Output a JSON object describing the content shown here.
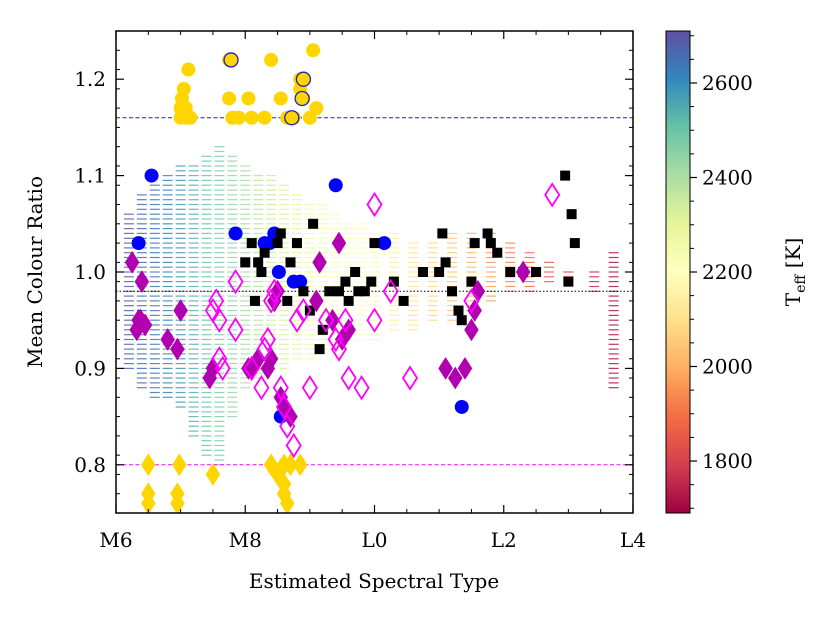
{
  "chart_data": {
    "type": "scatter",
    "title": "",
    "xlabel": "Estimated Spectral Type",
    "ylabel": "Mean Colour Ratio",
    "xlim": [
      0,
      8
    ],
    "ylim": [
      0.75,
      1.25
    ],
    "x_ticks": [
      {
        "value": 0,
        "label": "M6"
      },
      {
        "value": 2,
        "label": "M8"
      },
      {
        "value": 4,
        "label": "L0"
      },
      {
        "value": 6,
        "label": "L2"
      },
      {
        "value": 8,
        "label": "L4"
      }
    ],
    "y_ticks": [
      {
        "value": 0.8,
        "label": "0.8"
      },
      {
        "value": 0.9,
        "label": "0.9"
      },
      {
        "value": 1.0,
        "label": "1.0"
      },
      {
        "value": 1.1,
        "label": "1.1"
      },
      {
        "value": 1.2,
        "label": "1.2"
      }
    ],
    "grid": false,
    "reference_lines": [
      {
        "y": 1.16,
        "color": "#1f1fbf",
        "style": "dashed"
      },
      {
        "y": 0.98,
        "color": "#000000",
        "style": "dotted"
      },
      {
        "y": 0.8,
        "color": "#ff00ff",
        "style": "dashed"
      }
    ],
    "colorbar": {
      "label_main": "T",
      "label_sub": "eff",
      "label_unit": " [K]",
      "range": [
        1690,
        2710
      ],
      "ticks": [
        {
          "value": 1800,
          "label": "1800"
        },
        {
          "value": 2000,
          "label": "2000"
        },
        {
          "value": 2200,
          "label": "2200"
        },
        {
          "value": 2400,
          "label": "2400"
        },
        {
          "value": 2600,
          "label": "2600"
        }
      ],
      "colormap": "Spectral",
      "colors": [
        "#9e0142",
        "#d53e4f",
        "#f46d43",
        "#fdae61",
        "#fee08b",
        "#ffffbf",
        "#e6f598",
        "#abdda4",
        "#66c2a5",
        "#3288bd",
        "#5e4fa2"
      ]
    },
    "model_grid": {
      "columns": [
        {
          "x": 0.2,
          "y0": 0.9,
          "y1": 1.06,
          "teff": 2680
        },
        {
          "x": 0.4,
          "y0": 0.88,
          "y1": 1.08,
          "teff": 2660
        },
        {
          "x": 0.6,
          "y0": 0.87,
          "y1": 1.09,
          "teff": 2640
        },
        {
          "x": 0.8,
          "y0": 0.87,
          "y1": 1.1,
          "teff": 2610
        },
        {
          "x": 1.0,
          "y0": 0.86,
          "y1": 1.11,
          "teff": 2580
        },
        {
          "x": 1.2,
          "y0": 0.83,
          "y1": 1.11,
          "teff": 2540
        },
        {
          "x": 1.4,
          "y0": 0.81,
          "y1": 1.12,
          "teff": 2500
        },
        {
          "x": 1.6,
          "y0": 0.8,
          "y1": 1.13,
          "teff": 2470
        },
        {
          "x": 1.8,
          "y0": 0.85,
          "y1": 1.12,
          "teff": 2440
        },
        {
          "x": 2.0,
          "y0": 0.88,
          "y1": 1.11,
          "teff": 2410
        },
        {
          "x": 2.2,
          "y0": 0.89,
          "y1": 1.1,
          "teff": 2380
        },
        {
          "x": 2.4,
          "y0": 0.9,
          "y1": 1.1,
          "teff": 2350
        },
        {
          "x": 2.6,
          "y0": 0.9,
          "y1": 1.09,
          "teff": 2320
        },
        {
          "x": 2.8,
          "y0": 0.91,
          "y1": 1.08,
          "teff": 2300
        },
        {
          "x": 3.0,
          "y0": 0.91,
          "y1": 1.07,
          "teff": 2270
        },
        {
          "x": 3.2,
          "y0": 0.92,
          "y1": 1.07,
          "teff": 2250
        },
        {
          "x": 3.4,
          "y0": 0.92,
          "y1": 1.06,
          "teff": 2230
        },
        {
          "x": 3.6,
          "y0": 0.93,
          "y1": 1.05,
          "teff": 2210
        },
        {
          "x": 3.8,
          "y0": 0.93,
          "y1": 1.05,
          "teff": 2190
        },
        {
          "x": 4.0,
          "y0": 0.93,
          "y1": 1.04,
          "teff": 2170
        },
        {
          "x": 4.3,
          "y0": 0.94,
          "y1": 1.04,
          "teff": 2140
        },
        {
          "x": 4.6,
          "y0": 0.94,
          "y1": 1.03,
          "teff": 2110
        },
        {
          "x": 4.9,
          "y0": 0.95,
          "y1": 1.03,
          "teff": 2080
        },
        {
          "x": 5.2,
          "y0": 0.95,
          "y1": 1.04,
          "teff": 2050
        },
        {
          "x": 5.5,
          "y0": 0.96,
          "y1": 1.04,
          "teff": 2010
        },
        {
          "x": 5.8,
          "y0": 0.97,
          "y1": 1.04,
          "teff": 1970
        },
        {
          "x": 6.1,
          "y0": 0.98,
          "y1": 1.03,
          "teff": 1930
        },
        {
          "x": 6.4,
          "y0": 0.98,
          "y1": 1.02,
          "teff": 1890
        },
        {
          "x": 6.7,
          "y0": 0.99,
          "y1": 1.01,
          "teff": 1850
        },
        {
          "x": 7.0,
          "y0": 0.99,
          "y1": 1.0,
          "teff": 1800
        },
        {
          "x": 7.4,
          "y0": 0.98,
          "y1": 1.0,
          "teff": 1760
        },
        {
          "x": 7.7,
          "y0": 0.88,
          "y1": 1.02,
          "teff": 1720
        }
      ],
      "row_spacing": 0.005
    },
    "series": [
      {
        "marker": "circle",
        "color": "#0000ff",
        "points": [
          [
            0.55,
            1.1
          ],
          [
            0.35,
            1.03
          ],
          [
            1.85,
            1.04
          ],
          [
            2.3,
            1.03
          ],
          [
            2.38,
            1.03
          ],
          [
            2.45,
            1.04
          ],
          [
            2.52,
            1.0
          ],
          [
            2.55,
            0.85
          ],
          [
            2.75,
            0.99
          ],
          [
            2.85,
            0.99
          ],
          [
            3.4,
            1.09
          ],
          [
            4.15,
            1.03
          ],
          [
            5.35,
            0.86
          ]
        ]
      },
      {
        "marker": "square",
        "color": "#000000",
        "points": [
          [
            2.0,
            1.01
          ],
          [
            2.1,
            1.03
          ],
          [
            2.15,
            0.97
          ],
          [
            2.2,
            1.01
          ],
          [
            2.25,
            1.0
          ],
          [
            2.3,
            1.02
          ],
          [
            2.5,
            1.03
          ],
          [
            2.55,
            1.04
          ],
          [
            2.65,
            0.97
          ],
          [
            2.7,
            1.01
          ],
          [
            2.8,
            1.03
          ],
          [
            2.9,
            0.98
          ],
          [
            3.0,
            0.96
          ],
          [
            3.05,
            1.05
          ],
          [
            3.15,
            0.92
          ],
          [
            3.2,
            0.94
          ],
          [
            3.3,
            0.98
          ],
          [
            3.45,
            0.98
          ],
          [
            3.55,
            0.99
          ],
          [
            3.6,
            0.97
          ],
          [
            3.7,
            1.0
          ],
          [
            3.75,
            0.98
          ],
          [
            3.85,
            0.98
          ],
          [
            3.95,
            0.99
          ],
          [
            4.0,
            1.03
          ],
          [
            4.3,
            0.99
          ],
          [
            4.45,
            0.97
          ],
          [
            4.75,
            1.0
          ],
          [
            5.0,
            1.0
          ],
          [
            5.05,
            1.04
          ],
          [
            5.1,
            1.01
          ],
          [
            5.2,
            0.98
          ],
          [
            5.3,
            0.96
          ],
          [
            5.35,
            0.95
          ],
          [
            5.5,
            0.99
          ],
          [
            5.55,
            1.03
          ],
          [
            5.75,
            1.04
          ],
          [
            5.8,
            1.03
          ],
          [
            5.9,
            1.02
          ],
          [
            6.1,
            1.0
          ],
          [
            6.3,
            1.0
          ],
          [
            6.5,
            1.0
          ],
          [
            7.0,
            0.99
          ],
          [
            7.05,
            1.06
          ],
          [
            7.1,
            1.03
          ],
          [
            6.95,
            1.1
          ]
        ]
      },
      {
        "marker": "diamond",
        "color": "#b000b0",
        "points": [
          [
            0.25,
            1.01
          ],
          [
            0.4,
            0.99
          ],
          [
            0.35,
            0.95
          ],
          [
            0.32,
            0.94
          ],
          [
            0.38,
            0.95
          ],
          [
            0.45,
            0.945
          ],
          [
            0.8,
            0.93
          ],
          [
            0.95,
            0.92
          ],
          [
            1.0,
            0.96
          ],
          [
            1.45,
            0.89
          ],
          [
            1.5,
            0.9
          ],
          [
            2.05,
            0.9
          ],
          [
            2.1,
            0.9
          ],
          [
            2.2,
            0.91
          ],
          [
            2.35,
            0.9
          ],
          [
            2.4,
            0.91
          ],
          [
            2.45,
            0.97
          ],
          [
            2.5,
            0.98
          ],
          [
            2.55,
            0.87
          ],
          [
            2.6,
            0.86
          ],
          [
            2.7,
            0.85
          ],
          [
            3.1,
            0.97
          ],
          [
            3.15,
            1.01
          ],
          [
            3.35,
            0.95
          ],
          [
            3.45,
            1.03
          ],
          [
            3.5,
            0.93
          ],
          [
            3.6,
            0.94
          ],
          [
            5.1,
            0.9
          ],
          [
            5.25,
            0.89
          ],
          [
            5.4,
            0.9
          ],
          [
            5.5,
            0.94
          ],
          [
            5.55,
            0.96
          ],
          [
            5.6,
            0.98
          ],
          [
            6.3,
            1.0
          ]
        ]
      },
      {
        "marker": "diamond-open",
        "color": "#ff00ff",
        "points": [
          [
            1.5,
            0.96
          ],
          [
            1.55,
            0.97
          ],
          [
            1.6,
            0.95
          ],
          [
            1.6,
            0.91
          ],
          [
            1.65,
            0.9
          ],
          [
            1.85,
            0.94
          ],
          [
            1.85,
            0.99
          ],
          [
            2.1,
            0.9
          ],
          [
            2.25,
            0.88
          ],
          [
            2.3,
            0.92
          ],
          [
            2.35,
            0.93
          ],
          [
            2.4,
            0.97
          ],
          [
            2.45,
            0.98
          ],
          [
            2.55,
            0.88
          ],
          [
            2.6,
            0.86
          ],
          [
            2.65,
            0.84
          ],
          [
            2.75,
            0.82
          ],
          [
            2.8,
            0.95
          ],
          [
            2.9,
            0.96
          ],
          [
            3.0,
            0.88
          ],
          [
            3.25,
            0.95
          ],
          [
            3.4,
            0.93
          ],
          [
            3.45,
            0.92
          ],
          [
            3.55,
            0.95
          ],
          [
            3.6,
            0.89
          ],
          [
            3.8,
            0.88
          ],
          [
            4.0,
            0.95
          ],
          [
            4.0,
            1.07
          ],
          [
            4.25,
            0.98
          ],
          [
            4.55,
            0.89
          ],
          [
            5.5,
            0.97
          ],
          [
            6.75,
            1.08
          ]
        ]
      },
      {
        "marker": "circle",
        "color": "#ffd500",
        "points": [
          [
            1.0,
            1.16
          ],
          [
            1.0,
            1.17
          ],
          [
            1.02,
            1.18
          ],
          [
            1.05,
            1.19
          ],
          [
            1.05,
            1.165
          ],
          [
            1.08,
            1.17
          ],
          [
            1.1,
            1.16
          ],
          [
            1.12,
            1.21
          ],
          [
            1.15,
            1.16
          ],
          [
            1.75,
            1.18
          ],
          [
            1.8,
            1.16
          ],
          [
            1.9,
            1.16
          ],
          [
            2.05,
            1.18
          ],
          [
            2.1,
            1.16
          ],
          [
            2.3,
            1.16
          ],
          [
            2.4,
            1.22
          ],
          [
            2.55,
            1.18
          ],
          [
            2.65,
            1.16
          ],
          [
            2.75,
            1.16
          ],
          [
            2.85,
            1.19
          ],
          [
            2.9,
            1.18
          ],
          [
            3.0,
            1.16
          ],
          [
            3.05,
            1.23
          ],
          [
            3.1,
            1.17
          ],
          [
            1.75,
            1.22
          ],
          [
            2.85,
            1.2
          ]
        ]
      },
      {
        "marker": "circle-outlined",
        "color": "#ffd500",
        "edge": "#1f1fbf",
        "points": [
          [
            1.78,
            1.22
          ],
          [
            2.72,
            1.16
          ],
          [
            2.88,
            1.18
          ],
          [
            2.9,
            1.2
          ]
        ]
      },
      {
        "marker": "diamond",
        "color": "#ffd500",
        "points": [
          [
            0.5,
            0.8
          ],
          [
            0.5,
            0.77
          ],
          [
            0.5,
            0.76
          ],
          [
            0.98,
            0.8
          ],
          [
            0.95,
            0.77
          ],
          [
            0.95,
            0.76
          ],
          [
            1.5,
            0.79
          ],
          [
            2.4,
            0.8
          ],
          [
            2.5,
            0.79
          ],
          [
            2.6,
            0.8
          ],
          [
            2.6,
            0.78
          ],
          [
            2.6,
            0.77
          ],
          [
            2.65,
            0.76
          ],
          [
            2.7,
            0.8
          ],
          [
            2.85,
            0.8
          ],
          [
            2.55,
            0.795
          ]
        ]
      }
    ]
  }
}
